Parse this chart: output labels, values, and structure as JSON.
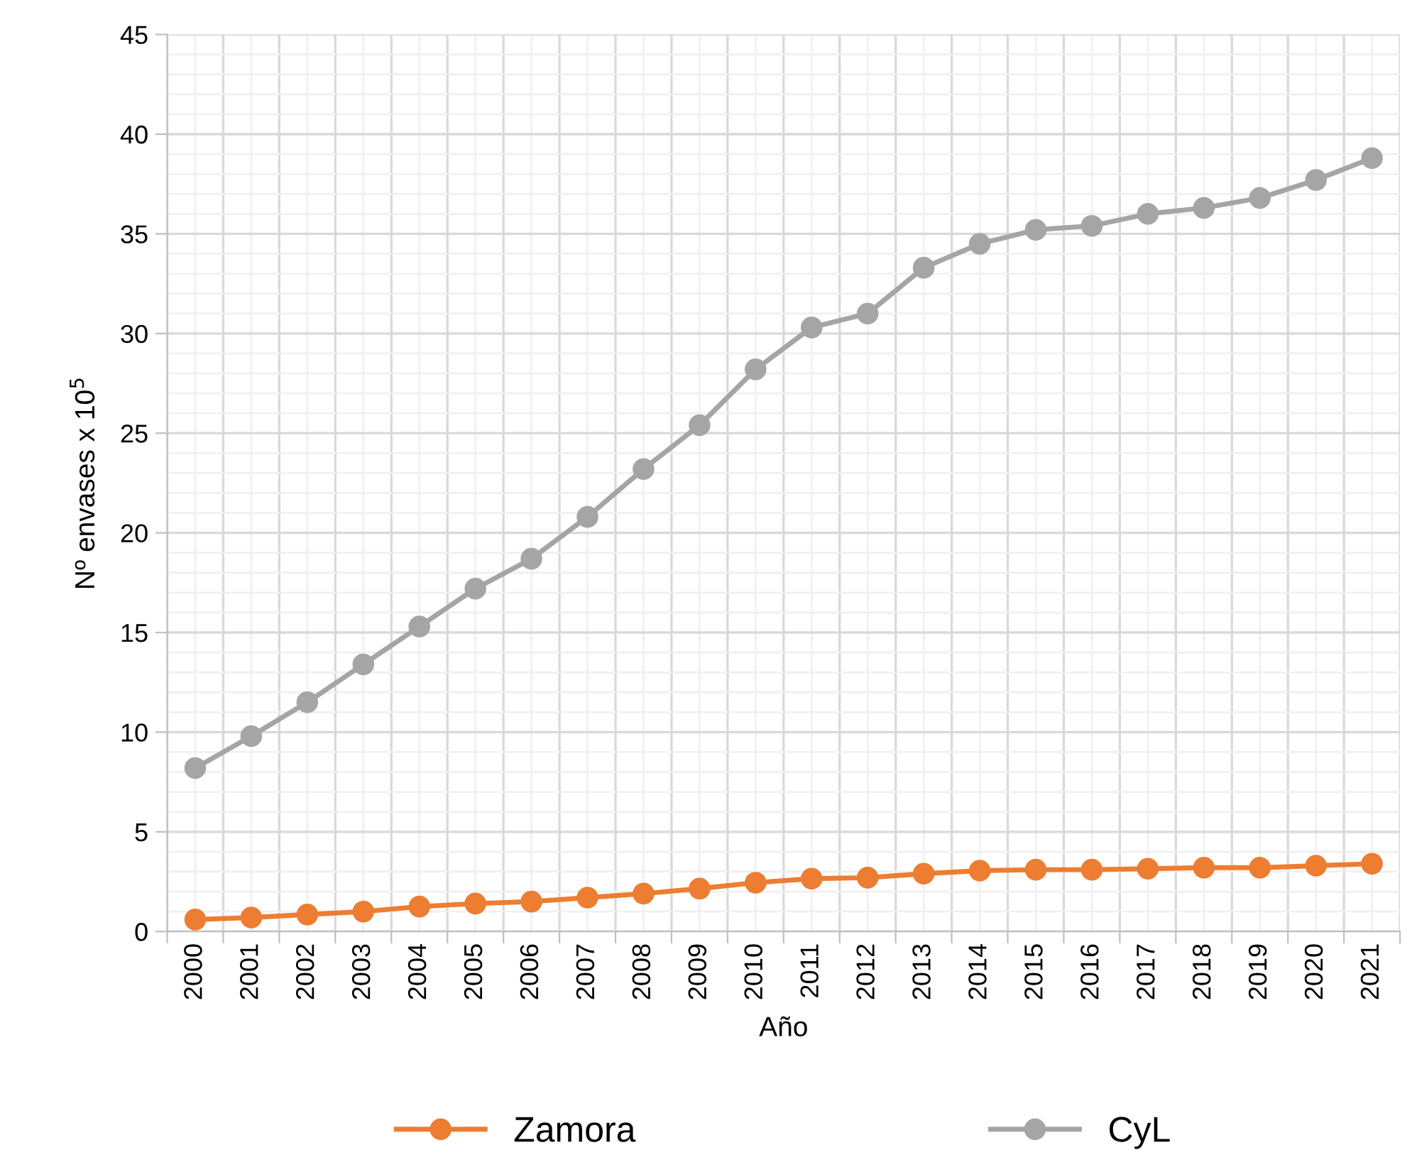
{
  "chart_data": {
    "type": "line",
    "xlabel": "Año",
    "ylabel": "Nº envases x 10$^{5}$",
    "categories": [
      "2000",
      "2001",
      "2002",
      "2003",
      "2004",
      "2005",
      "2006",
      "2007",
      "2008",
      "2009",
      "2010",
      "2011",
      "2012",
      "2013",
      "2014",
      "2015",
      "2016",
      "2017",
      "2018",
      "2019",
      "2020",
      "2021"
    ],
    "series": [
      {
        "name": "Zamora",
        "color": "#ed7d31",
        "values": [
          0.6,
          0.7,
          0.85,
          1.0,
          1.25,
          1.4,
          1.5,
          1.7,
          1.9,
          2.15,
          2.45,
          2.65,
          2.7,
          2.9,
          3.05,
          3.1,
          3.1,
          3.15,
          3.2,
          3.2,
          3.3,
          3.4
        ]
      },
      {
        "name": "CyL",
        "color": "#a5a5a5",
        "values": [
          8.2,
          9.8,
          11.5,
          13.4,
          15.3,
          17.2,
          18.7,
          20.8,
          23.2,
          25.4,
          28.2,
          30.3,
          31.0,
          33.3,
          34.5,
          35.2,
          35.4,
          36.0,
          36.3,
          36.8,
          37.7,
          38.8
        ]
      }
    ],
    "ylim": [
      0,
      45
    ],
    "yticks": [
      0,
      5,
      10,
      15,
      20,
      25,
      30,
      35,
      40,
      45
    ],
    "grid": true,
    "legend": "bottom",
    "marker": "circle",
    "line_style": "solid"
  }
}
